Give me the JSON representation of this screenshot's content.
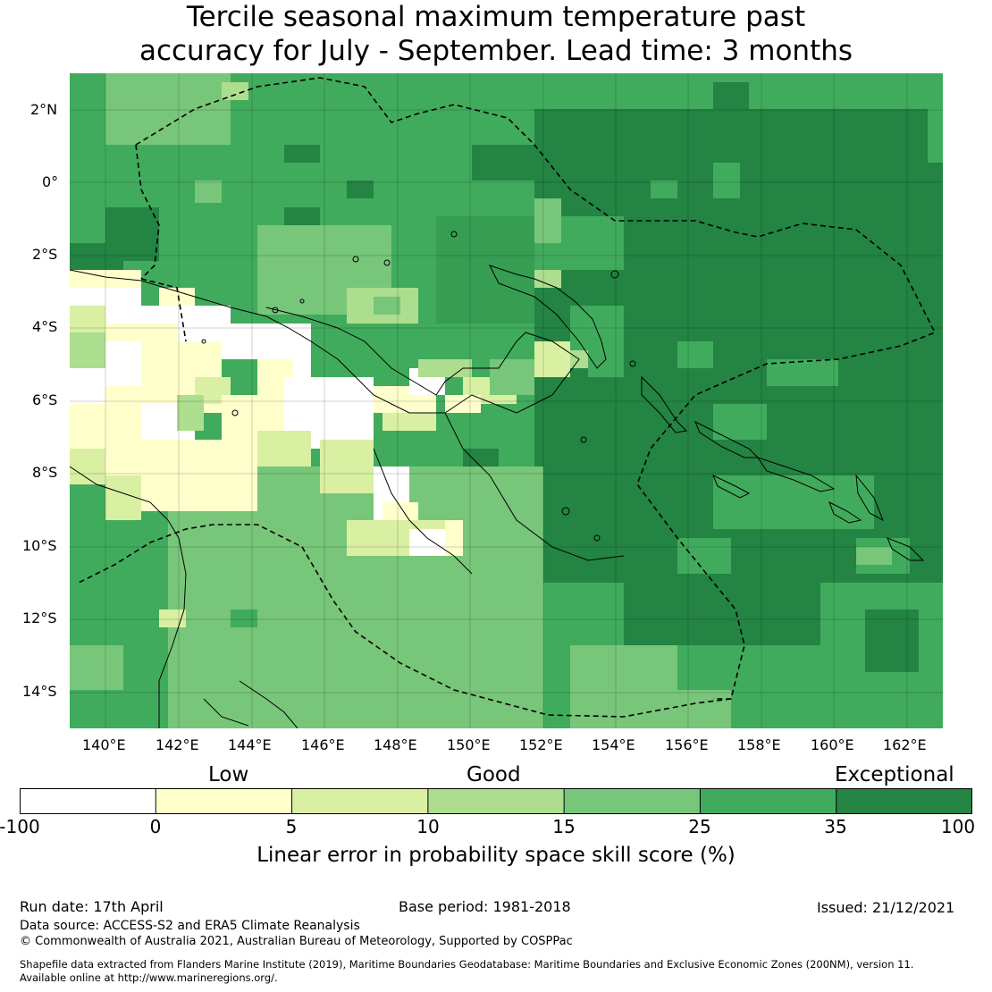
{
  "title": {
    "line1": "Tercile seasonal maximum temperature past",
    "line2": "accuracy for July - September. Lead time: 3 months"
  },
  "map": {
    "lon_range": [
      139,
      163
    ],
    "lat_range": [
      -15,
      3
    ],
    "x_ticks": [
      {
        "lon": 140,
        "label": "140°E"
      },
      {
        "lon": 142,
        "label": "142°E"
      },
      {
        "lon": 144,
        "label": "144°E"
      },
      {
        "lon": 146,
        "label": "146°E"
      },
      {
        "lon": 148,
        "label": "148°E"
      },
      {
        "lon": 150,
        "label": "150°E"
      },
      {
        "lon": 152,
        "label": "152°E"
      },
      {
        "lon": 154,
        "label": "154°E"
      },
      {
        "lon": 156,
        "label": "156°E"
      },
      {
        "lon": 158,
        "label": "158°E"
      },
      {
        "lon": 160,
        "label": "160°E"
      },
      {
        "lon": 162,
        "label": "162°E"
      }
    ],
    "y_ticks": [
      {
        "lat": 2,
        "label": "2°N"
      },
      {
        "lat": 0,
        "label": "0°"
      },
      {
        "lat": -2,
        "label": "2°S"
      },
      {
        "lat": -4,
        "label": "4°S"
      },
      {
        "lat": -6,
        "label": "6°S"
      },
      {
        "lat": -8,
        "label": "8°S"
      },
      {
        "lat": -10,
        "label": "10°S"
      },
      {
        "lat": -12,
        "label": "12°S"
      },
      {
        "lat": -14,
        "label": "14°S"
      }
    ],
    "eez_boundary_style": "dashed",
    "grid": true
  },
  "legend": {
    "categories": [
      {
        "label": "Low",
        "pos": 0.221
      },
      {
        "label": "Good",
        "pos": 0.497
      },
      {
        "label": "Exceptional",
        "pos": 0.922
      }
    ],
    "bins": [
      {
        "from": -100,
        "to": 0,
        "color": "#ffffff"
      },
      {
        "from": 0,
        "to": 5,
        "color": "#ffffcc"
      },
      {
        "from": 5,
        "to": 10,
        "color": "#d9f0a3"
      },
      {
        "from": 10,
        "to": 15,
        "color": "#addd8e"
      },
      {
        "from": 15,
        "to": 25,
        "color": "#78c679"
      },
      {
        "from": 25,
        "to": 35,
        "color": "#41ab5d"
      },
      {
        "from": 35,
        "to": 100,
        "color": "#238443"
      }
    ],
    "tick_labels": [
      "-100",
      "0",
      "5",
      "10",
      "15",
      "25",
      "35",
      "100"
    ],
    "label": "Linear error in probability space skill score (%)"
  },
  "footer": {
    "run_date": "Run date: 17th April",
    "base_period": "Base period: 1981-2018",
    "issued": "Issued: 21/12/2021",
    "data_source": "Data source: ACCESS-S2 and ERA5 Climate Reanalysis",
    "copyright": "© Commonwealth of Australia 2021, Australian Bureau of Meteorology, Supported by COSPPac",
    "shapefile_line1": "Shapefile data extracted from Flanders Marine Institute (2019), Maritime Boundaries Geodatabase: Maritime Boundaries and Exclusive Economic Zones (200NM), version 11.",
    "shapefile_line2": "Available online at http://www.marineregions.org/."
  }
}
